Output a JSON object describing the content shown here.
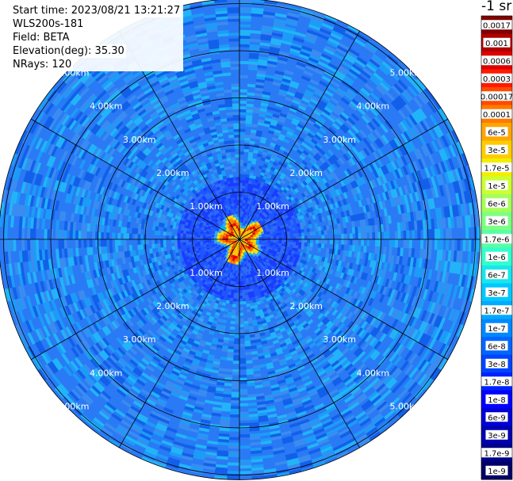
{
  "header": {
    "start_time": "Start time: 2023/08/21 13:21:27",
    "instrument": "WLS200s-181",
    "field": "Field: BETA",
    "elevation": "Elevation(deg): 35.30",
    "nrays": "NRays: 120"
  },
  "colorbar": {
    "unit": "-1 sr",
    "labels": [
      "0.0017",
      "0.001",
      "0.0006",
      "0.0003",
      "0.00017",
      "0.0001",
      "6e-5",
      "3e-5",
      "1.7e-5",
      "1e-5",
      "6e-6",
      "3e-6",
      "1.7e-6",
      "1e-6",
      "6e-7",
      "3e-7",
      "1.7e-7",
      "1e-7",
      "6e-8",
      "3e-8",
      "1.7e-8",
      "1e-8",
      "6e-9",
      "3e-9",
      "1.7e-9",
      "1e-9"
    ],
    "colors": [
      "#7f0000",
      "#b00000",
      "#de0000",
      "#ff1a00",
      "#ff4a00",
      "#ff7a00",
      "#ffa500",
      "#ffcc00",
      "#f2ee00",
      "#ccff33",
      "#a5ff5a",
      "#7dff82",
      "#5affa5",
      "#33ffcc",
      "#18e6ee",
      "#00c8ff",
      "#00aaff",
      "#0088ff",
      "#0066ff",
      "#0044ff",
      "#0022ff",
      "#0000ff",
      "#0000d6",
      "#0000b0",
      "#00008a",
      "#000066"
    ]
  },
  "chart_data": {
    "type": "heatmap",
    "projection": "polar (PPI)",
    "field": "BETA",
    "range_rings_km": [
      1,
      2,
      3,
      4,
      5
    ],
    "ring_labels": [
      "1.00km",
      "2.00km",
      "3.00km",
      "4.00km",
      "5.00km"
    ],
    "max_range_km": 5.1,
    "azimuth_spokes_deg": [
      0,
      30,
      60,
      90,
      120,
      150,
      180,
      210,
      240,
      270,
      300,
      330
    ],
    "nrays": 120,
    "near_field_structure": "high backscatter (1e-5 to 1e-3 sr^-1) within ~0.4 km of center",
    "background_level": "approx 1e-8 to 1e-7 sr^-1 beyond 1 km",
    "grid": true
  }
}
